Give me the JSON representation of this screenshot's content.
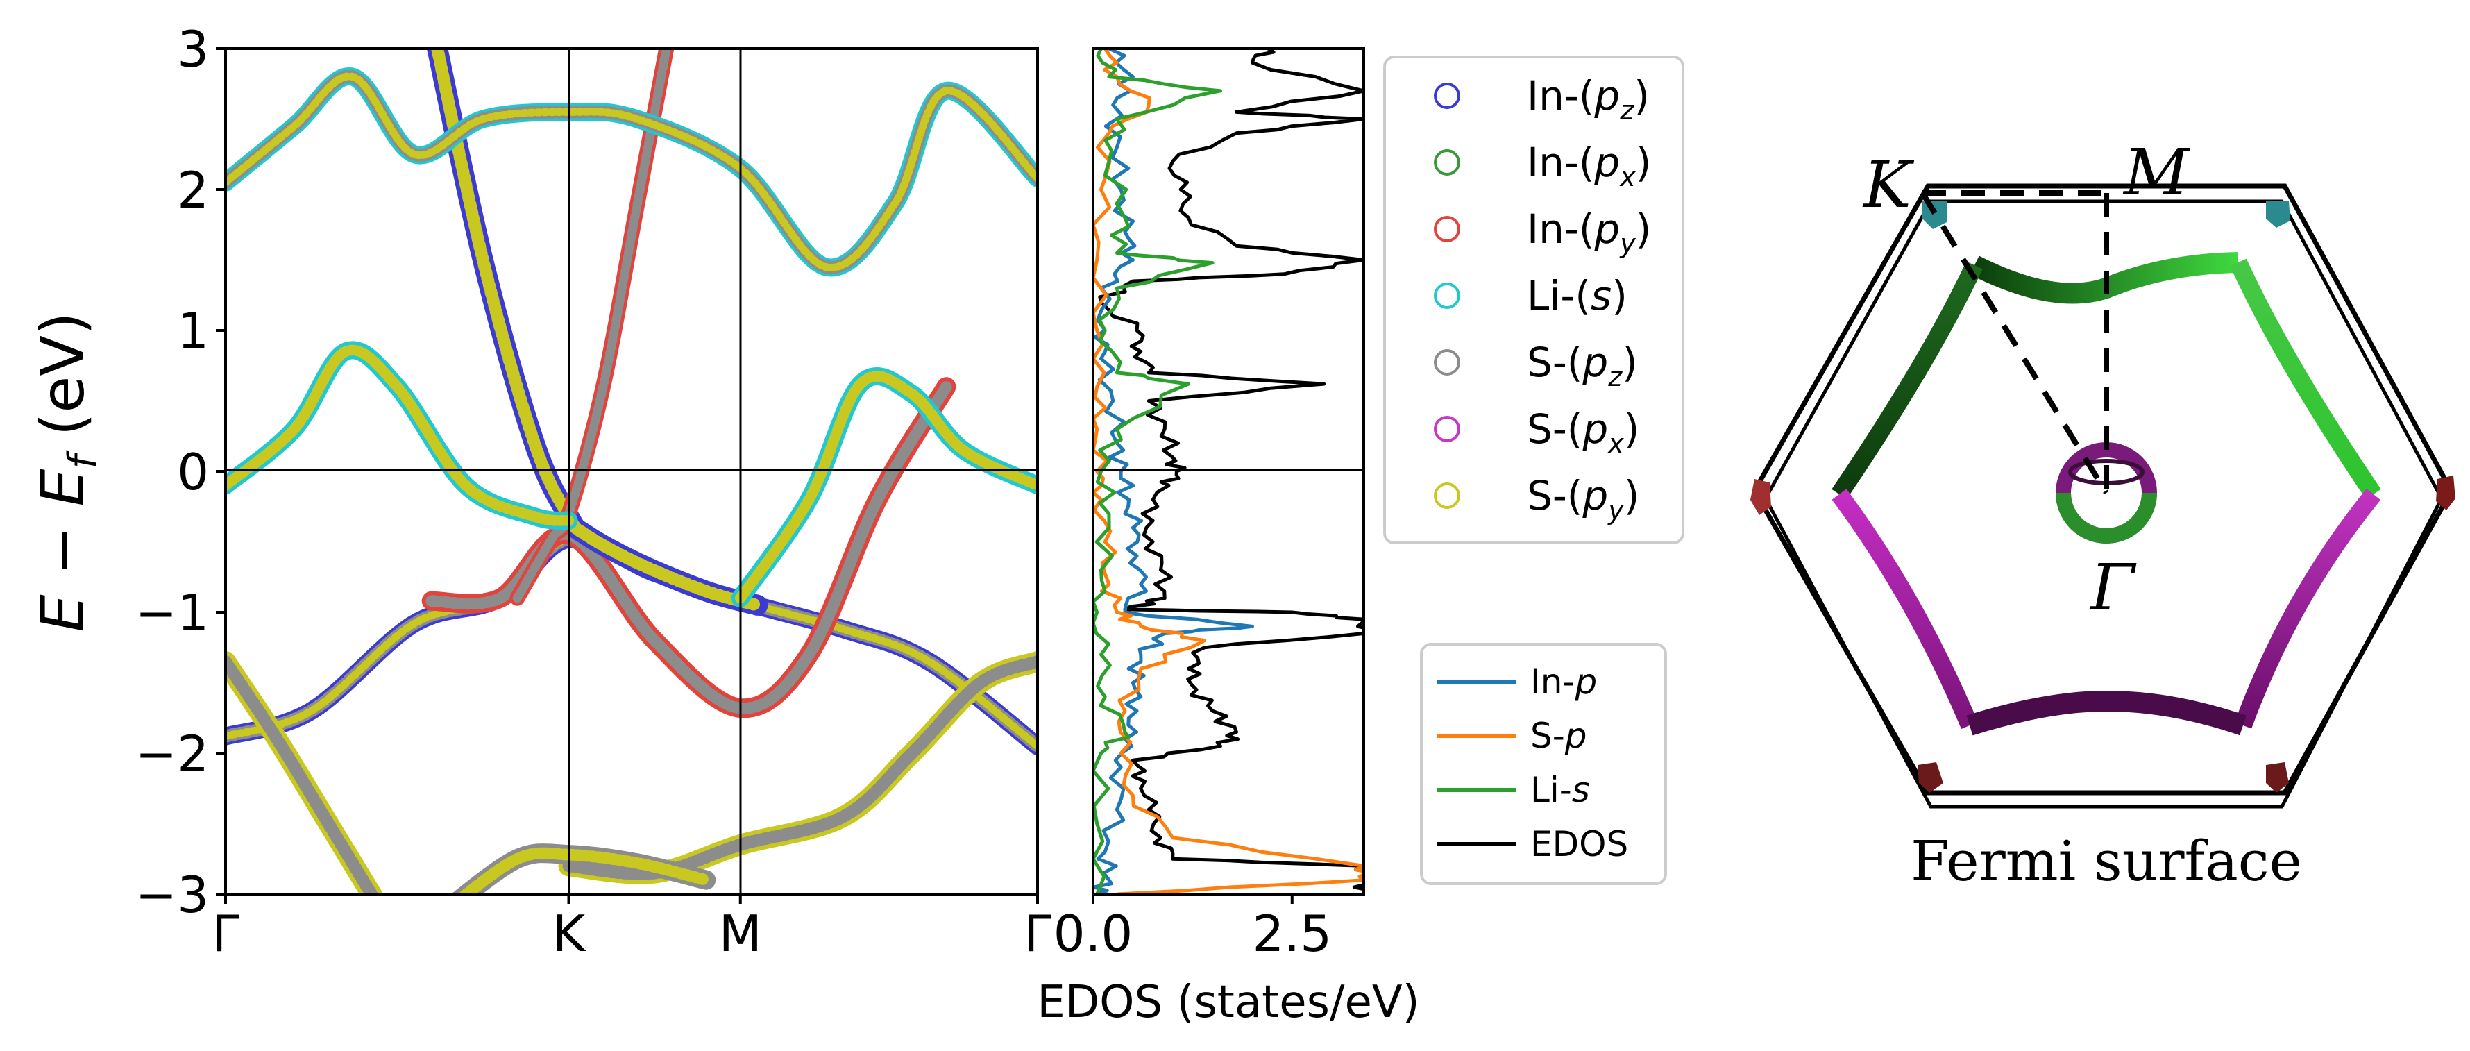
{
  "chart_data": [
    {
      "type": "line",
      "panel": "band structure",
      "ylabel_parts": [
        "E",
        " − ",
        "E",
        "f",
        " (eV)"
      ],
      "ylim": [
        -3,
        3
      ],
      "yticks": [
        "−3",
        "−2",
        "−1",
        "0",
        "1",
        "2",
        "3"
      ],
      "xticks": [
        "Γ",
        "K",
        "M",
        "Γ"
      ],
      "k_positions": [
        0,
        1,
        1.5,
        2.366
      ],
      "grid": "vertical lines at K and M, horizontal line at E=0",
      "legend": [
        {
          "label": "In-(p",
          "sub": "z",
          "close": ")",
          "color": "#3b3bd4"
        },
        {
          "label": "In-(p",
          "sub": "x",
          "close": ")",
          "color": "#3a9a3a"
        },
        {
          "label": "In-(p",
          "sub": "y",
          "close": ")",
          "color": "#e0443c"
        },
        {
          "label": "Li-(s",
          "sub": "",
          "close": ")",
          "color": "#22c8d0"
        },
        {
          "label": "S-(p",
          "sub": "z",
          "close": ")",
          "color": "#8c8c8c"
        },
        {
          "label": "S-(p",
          "sub": "x",
          "close": ")",
          "color": "#c838c8"
        },
        {
          "label": "S-(p",
          "sub": "y",
          "close": ")",
          "color": "#c8c820"
        }
      ],
      "bands": [
        {
          "name": "valence-low",
          "k": [
            0,
            0.25,
            0.55,
            0.8,
            1.0,
            1.25,
            1.5,
            1.8,
            2.05,
            2.366
          ],
          "e": [
            -1.88,
            -1.7,
            -1.08,
            -0.9,
            -0.48,
            -0.72,
            -0.92,
            -1.12,
            -1.35,
            -1.95
          ],
          "colors": [
            "#3b3bd4",
            "#8c8c8c",
            "#c8c820"
          ],
          "width": 26
        },
        {
          "name": "band-red-cross",
          "k": [
            0.6,
            0.8,
            1.0,
            1.25,
            1.5,
            1.7,
            1.9,
            2.1
          ],
          "e": [
            -0.92,
            -0.9,
            -0.45,
            -1.2,
            -1.68,
            -1.3,
            -0.2,
            0.6
          ],
          "colors": [
            "#e0443c",
            "#8c8c8c"
          ],
          "width": 28
        },
        {
          "name": "cone-down",
          "k": [
            0.6,
            0.75,
            0.9,
            1.0,
            1.05,
            1.2,
            1.4,
            1.55
          ],
          "e": [
            3.2,
            1.5,
            0.2,
            -0.32,
            -0.45,
            -0.65,
            -0.85,
            -0.95
          ],
          "colors": [
            "#3b3bd4",
            "#c8c820"
          ],
          "width": 30
        },
        {
          "name": "cone-up",
          "k": [
            0.85,
            0.95,
            1.0,
            1.1,
            1.2,
            1.3
          ],
          "e": [
            -0.9,
            -0.48,
            -0.3,
            0.6,
            1.9,
            3.2
          ],
          "colors": [
            "#e0443c",
            "#8c8c8c"
          ],
          "width": 22
        },
        {
          "name": "li-s-band",
          "k": [
            0,
            0.2,
            0.35,
            0.5,
            0.7,
            0.9,
            1.0
          ],
          "e": [
            -0.1,
            0.3,
            0.85,
            0.6,
            -0.1,
            -0.32,
            -0.35
          ],
          "colors": [
            "#22c8d0",
            "#c8c820"
          ],
          "width": 26
        },
        {
          "name": "li-s-band-2",
          "k": [
            1.5,
            1.7,
            1.85,
            2.0,
            2.15,
            2.366
          ],
          "e": [
            -0.9,
            -0.2,
            0.62,
            0.55,
            0.15,
            -0.1
          ],
          "colors": [
            "#22c8d0",
            "#c8c820"
          ],
          "width": 26
        },
        {
          "name": "upper-band",
          "k": [
            0,
            0.2,
            0.37,
            0.55,
            0.75,
            1.0,
            1.2,
            1.5,
            1.75,
            1.95,
            2.1,
            2.366
          ],
          "e": [
            2.05,
            2.45,
            2.8,
            2.25,
            2.5,
            2.55,
            2.5,
            2.15,
            1.45,
            1.9,
            2.7,
            2.08
          ],
          "colors": [
            "#22c8d0",
            "#8c8c8c",
            "#c8c820"
          ],
          "width": 26
        },
        {
          "name": "deep-yellow-1",
          "k": [
            0,
            0.15,
            0.3,
            0.45
          ],
          "e": [
            -1.35,
            -1.9,
            -2.5,
            -3.1
          ],
          "colors": [
            "#c8c820",
            "#8c8c8c"
          ],
          "width": 30
        },
        {
          "name": "deep-yellow-2",
          "k": [
            1.0,
            1.25,
            1.5,
            1.8,
            2.0,
            2.2,
            2.366
          ],
          "e": [
            -2.8,
            -2.85,
            -2.65,
            -2.45,
            -2.0,
            -1.5,
            -1.35
          ],
          "colors": [
            "#c8c820",
            "#8c8c8c"
          ],
          "width": 30
        },
        {
          "name": "deep-grey",
          "k": [
            0.65,
            0.85,
            1.0,
            1.2,
            1.4
          ],
          "e": [
            -3.1,
            -2.75,
            -2.72,
            -2.78,
            -2.9
          ],
          "colors": [
            "#8c8c8c",
            "#c8c820"
          ],
          "width": 28
        }
      ]
    },
    {
      "type": "line",
      "panel": "EDOS",
      "xlabel": "EDOS (states/eV)",
      "xlim": [
        0,
        3.4
      ],
      "xticks": [
        "0.0",
        "2.5"
      ],
      "ylim": [
        -3,
        3
      ],
      "legend": [
        {
          "name": "In-",
          "italic": "p",
          "color": "#1f77b4"
        },
        {
          "name": "S-",
          "italic": "p",
          "color": "#ff7f0e"
        },
        {
          "name": "Li-",
          "italic": "s",
          "color": "#2ca02c"
        },
        {
          "name": "EDOS",
          "italic": "",
          "color": "#000000"
        }
      ],
      "series": [
        {
          "name": "EDOS",
          "color": "#000000",
          "e": [
            -3,
            -2.9,
            -2.8,
            -2.75,
            -2.6,
            -2.4,
            -2.2,
            -2.05,
            -1.95,
            -1.85,
            -1.7,
            -1.55,
            -1.4,
            -1.25,
            -1.15,
            -1.05,
            -1.0,
            -0.98,
            -0.9,
            -0.7,
            -0.5,
            -0.3,
            -0.1,
            0.0,
            0.1,
            0.3,
            0.5,
            0.62,
            0.7,
            0.85,
            1.0,
            1.2,
            1.35,
            1.4,
            1.5,
            1.6,
            1.8,
            2.0,
            2.2,
            2.4,
            2.5,
            2.55,
            2.7,
            2.9,
            3.0
          ],
          "x": [
            3.4,
            3.4,
            3.4,
            1.0,
            0.85,
            0.7,
            0.65,
            0.5,
            1.6,
            1.8,
            1.5,
            1.3,
            1.2,
            1.4,
            3.4,
            3.4,
            2.5,
            0.4,
            0.9,
            0.85,
            0.75,
            0.62,
            0.95,
            1.05,
            1.0,
            0.9,
            0.7,
            2.9,
            0.7,
            0.6,
            0.55,
            0.1,
            0.5,
            2.4,
            3.4,
            1.8,
            1.2,
            1.1,
            1.0,
            1.8,
            3.4,
            1.8,
            3.4,
            2.0,
            2.2
          ]
        },
        {
          "name": "In-p",
          "color": "#1f77b4",
          "e": [
            -3,
            -2.9,
            -2.7,
            -2.4,
            -2.1,
            -1.9,
            -1.7,
            -1.5,
            -1.3,
            -1.15,
            -1.1,
            -1.0,
            -0.8,
            -0.6,
            -0.4,
            -0.2,
            0.0,
            0.2,
            0.5,
            0.8,
            1.0,
            1.3,
            1.5,
            1.7,
            2.0,
            2.3,
            2.6,
            2.8,
            3.0
          ],
          "x": [
            0.05,
            0.2,
            0.15,
            0.3,
            0.35,
            0.4,
            0.55,
            0.5,
            0.6,
            0.9,
            2.0,
            0.4,
            0.6,
            0.55,
            0.5,
            0.45,
            0.35,
            0.3,
            0.25,
            0.1,
            0.15,
            0.1,
            0.5,
            0.4,
            0.35,
            0.3,
            0.25,
            0.5,
            0.2
          ]
        },
        {
          "name": "S-p",
          "color": "#ff7f0e",
          "e": [
            -3,
            -2.9,
            -2.8,
            -2.6,
            -2.3,
            -2.0,
            -1.7,
            -1.4,
            -1.2,
            -1.1,
            -1.0,
            -0.8,
            -0.5,
            -0.2,
            0.0,
            0.3,
            0.6,
            1.0,
            1.5,
            2.0,
            2.4,
            2.6,
            2.8,
            3.0
          ],
          "x": [
            0.3,
            3.4,
            3.4,
            1.0,
            0.5,
            0.35,
            0.4,
            0.6,
            1.4,
            0.6,
            0.3,
            0.2,
            0.15,
            0.1,
            0.05,
            0.05,
            0.05,
            0.05,
            0.05,
            0.1,
            0.2,
            0.7,
            0.3,
            0.15
          ]
        },
        {
          "name": "Li-s",
          "color": "#2ca02c",
          "e": [
            -3,
            -2.5,
            -2.0,
            -1.85,
            -1.6,
            -1.3,
            -1.0,
            -0.7,
            -0.3,
            0.0,
            0.3,
            0.62,
            0.7,
            1.0,
            1.3,
            1.48,
            1.55,
            1.8,
            2.2,
            2.5,
            2.7,
            2.8,
            3.0
          ],
          "x": [
            0.05,
            0.05,
            0.1,
            0.4,
            0.15,
            0.1,
            0.05,
            0.1,
            0.2,
            0.1,
            0.3,
            1.2,
            0.3,
            0.15,
            0.3,
            1.5,
            0.3,
            0.4,
            0.2,
            0.3,
            1.6,
            0.2,
            0.1
          ]
        }
      ]
    }
  ],
  "fermi_surface": {
    "title": "Fermi surface",
    "labels": {
      "K": "K",
      "M": "M",
      "Gamma": "Γ"
    }
  }
}
